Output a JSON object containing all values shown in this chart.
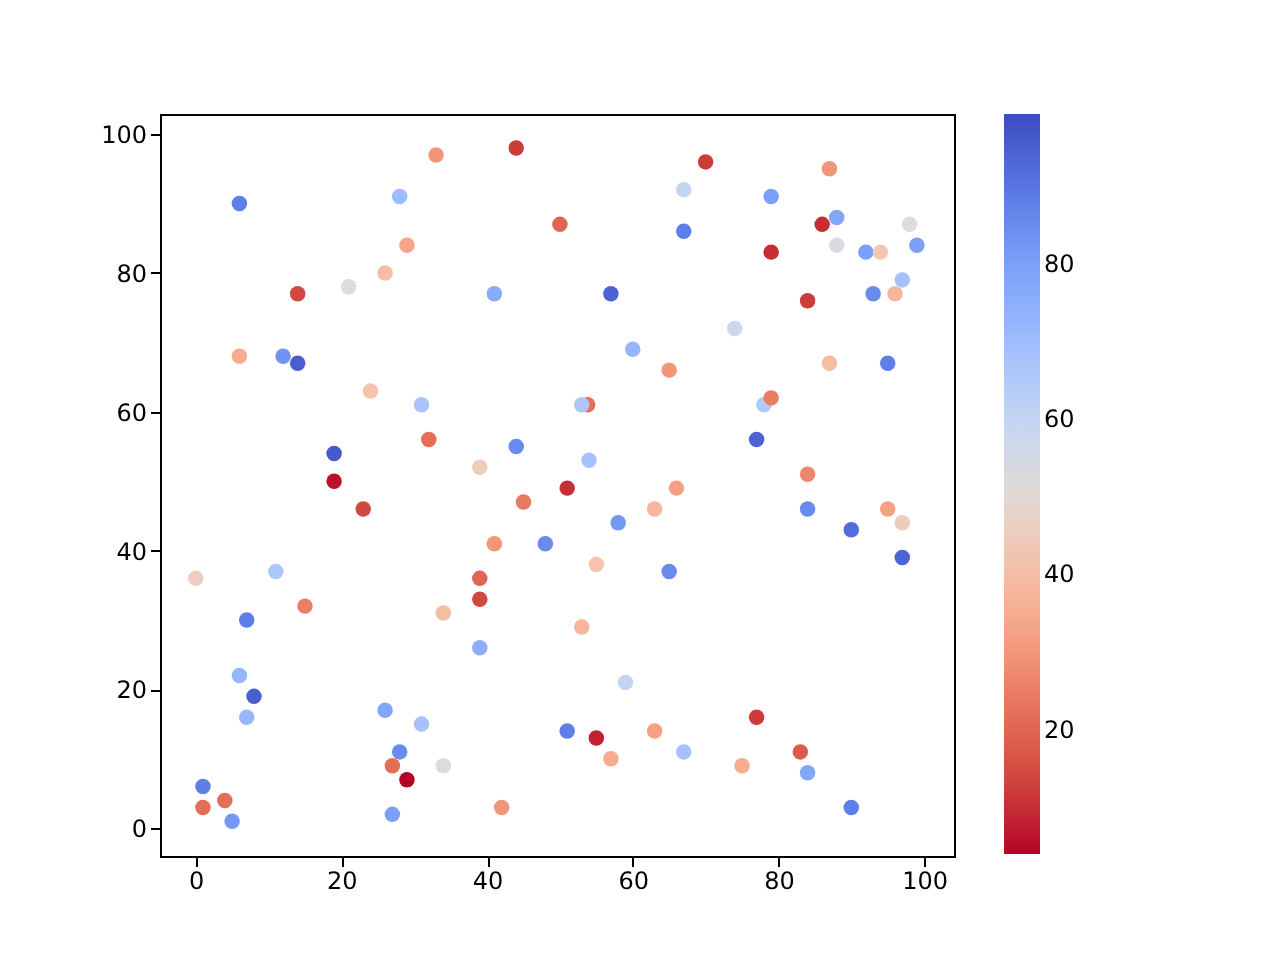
{
  "chart_data": {
    "type": "scatter",
    "x": [
      0,
      1,
      1,
      4,
      5,
      6,
      6,
      6,
      7,
      7,
      8,
      11,
      12,
      14,
      14,
      15,
      19,
      19,
      21,
      23,
      24,
      26,
      26,
      27,
      27,
      28,
      28,
      29,
      29,
      31,
      31,
      32,
      33,
      34,
      34,
      39,
      39,
      39,
      39,
      41,
      41,
      42,
      44,
      44,
      45,
      48,
      50,
      51,
      51,
      53,
      53.8,
      53,
      54,
      55,
      55,
      57,
      57,
      58,
      59,
      60,
      63,
      63,
      65,
      65,
      66,
      67,
      67,
      67,
      70,
      74,
      75,
      77,
      77,
      78,
      79,
      79,
      79,
      83,
      84,
      84,
      84,
      84,
      86,
      87,
      87,
      88,
      88,
      90,
      90,
      92,
      94,
      93,
      96,
      97,
      98,
      99,
      95,
      95,
      97,
      97
    ],
    "values": [
      36,
      6,
      3,
      4,
      1,
      90,
      68,
      22,
      30,
      16,
      19,
      37,
      68,
      77,
      67,
      32,
      54,
      50,
      78,
      46,
      63,
      80,
      17,
      9,
      2,
      91,
      11,
      84,
      7,
      61,
      15,
      56,
      97,
      31,
      9,
      52,
      36,
      33,
      26,
      77,
      41,
      3,
      98,
      55,
      47,
      41,
      87,
      49,
      14,
      29,
      61,
      61,
      53,
      38,
      13,
      77,
      10,
      44,
      21,
      69,
      46,
      14,
      66,
      37,
      49,
      92,
      86,
      11,
      96,
      72,
      9,
      16,
      56,
      61,
      62,
      91,
      83,
      11,
      76,
      51,
      46,
      8,
      87,
      95,
      67,
      88,
      84,
      43,
      3,
      83,
      83,
      77,
      77,
      79,
      87,
      84,
      67,
      46,
      44,
      39
    ],
    "cvalues": [
      46,
      88,
      22,
      22,
      82,
      88,
      35,
      72,
      88,
      72,
      95,
      66,
      83,
      14,
      95,
      25,
      96,
      6,
      52,
      14,
      42,
      40,
      78,
      22,
      80,
      70,
      85,
      33,
      4,
      67,
      68,
      22,
      30,
      40,
      52,
      45,
      20,
      14,
      75,
      76,
      30,
      30,
      12,
      85,
      24,
      85,
      20,
      10,
      88,
      38,
      22,
      66,
      68,
      42,
      8,
      94,
      35,
      82,
      60,
      72,
      38,
      32,
      30,
      85,
      32,
      60,
      88,
      68,
      12,
      58,
      35,
      12,
      94,
      65,
      25,
      80,
      10,
      18,
      12,
      27,
      85,
      78,
      10,
      30,
      40,
      78,
      53,
      92,
      88,
      80,
      43,
      85,
      38,
      68,
      52,
      80,
      88,
      32,
      45,
      94
    ],
    "xlim": [
      -4.9,
      104.1
    ],
    "xticks": [
      0,
      20,
      40,
      60,
      80,
      100
    ],
    "ylim": [
      -4.0,
      102.9
    ],
    "yticks": [
      0,
      20,
      40,
      60,
      80,
      100
    ],
    "clim": [
      4,
      99.3
    ],
    "cticks": [
      20,
      40,
      60,
      80
    ],
    "marker": "circle",
    "grid": false
  }
}
